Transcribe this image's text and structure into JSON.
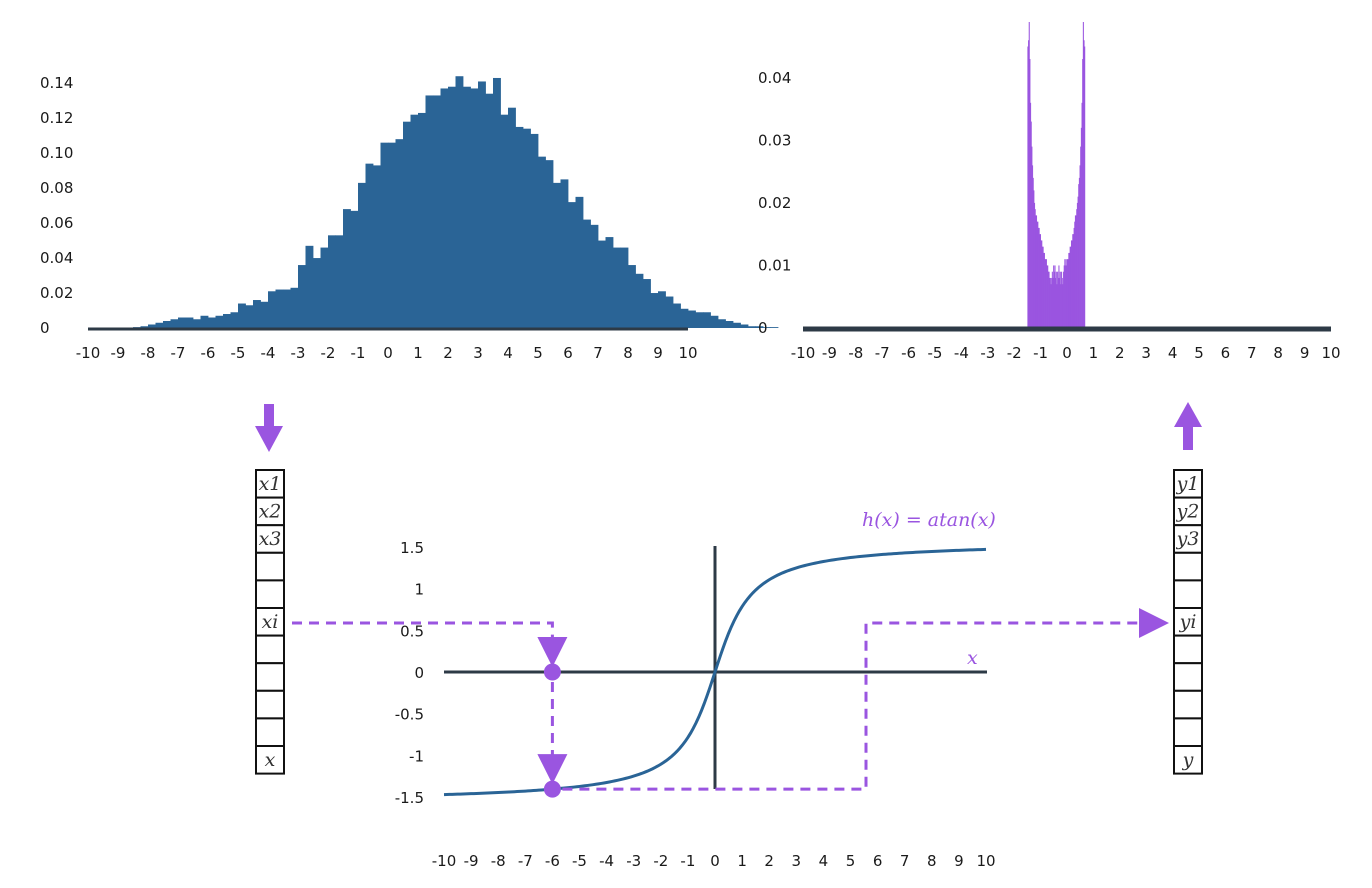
{
  "colors": {
    "input_hist": "#2a6496",
    "output_hist": "#9a55e0",
    "curve": "#2a6496",
    "accent": "#9a55e0",
    "axis": "#2d3a46"
  },
  "chart_data": [
    {
      "type": "bar",
      "xlim": [
        -10,
        10
      ],
      "ylim": [
        0,
        0.15
      ],
      "yticks": [
        "0",
        "0.02",
        "0.04",
        "0.06",
        "0.08",
        "0.10",
        "0.12",
        "0.14"
      ],
      "xticks": [
        "-10",
        "-9",
        "-8",
        "-7",
        "-6",
        "-5",
        "-4",
        "-3",
        "-2",
        "-1",
        "0",
        "1",
        "2",
        "3",
        "4",
        "5",
        "6",
        "7",
        "8",
        "9",
        "10"
      ],
      "bin_start": -10,
      "bin_width": 0.25,
      "values": [
        0.0,
        0.0,
        0.0,
        0.0,
        0.0,
        0.0,
        0.0005,
        0.001,
        0.002,
        0.003,
        0.004,
        0.005,
        0.006,
        0.006,
        0.005,
        0.007,
        0.006,
        0.007,
        0.008,
        0.009,
        0.014,
        0.013,
        0.016,
        0.015,
        0.021,
        0.022,
        0.022,
        0.023,
        0.036,
        0.047,
        0.04,
        0.046,
        0.053,
        0.053,
        0.068,
        0.067,
        0.083,
        0.094,
        0.093,
        0.106,
        0.106,
        0.108,
        0.118,
        0.122,
        0.123,
        0.133,
        0.133,
        0.137,
        0.138,
        0.144,
        0.138,
        0.137,
        0.141,
        0.134,
        0.143,
        0.122,
        0.126,
        0.115,
        0.114,
        0.111,
        0.098,
        0.096,
        0.083,
        0.085,
        0.072,
        0.075,
        0.062,
        0.059,
        0.05,
        0.052,
        0.046,
        0.046,
        0.036,
        0.031,
        0.028,
        0.02,
        0.021,
        0.018,
        0.014,
        0.011,
        0.01,
        0.009,
        0.009,
        0.007,
        0.005,
        0.004,
        0.003,
        0.002,
        0.001,
        0.001,
        0.0005,
        0.0005,
        0.0,
        0.0,
        0.0,
        0.0,
        0.0,
        0.0,
        0.0,
        0.0
      ]
    },
    {
      "type": "bar",
      "xlim": [
        -10,
        10
      ],
      "ylim": [
        0,
        0.047
      ],
      "yticks": [
        "0",
        "0.01",
        "0.02",
        "0.03",
        "0.04"
      ],
      "xticks": [
        "-10",
        "-9",
        "-8",
        "-7",
        "-6",
        "-5",
        "-4",
        "-3",
        "-2",
        "-1",
        "0",
        "1",
        "2",
        "3",
        "4",
        "5",
        "6",
        "7",
        "8",
        "9",
        "10"
      ],
      "bin_start": -1.5,
      "bin_width": 0.025,
      "values": [
        0.045,
        0.046,
        0.05,
        0.043,
        0.036,
        0.033,
        0.029,
        0.026,
        0.024,
        0.022,
        0.02,
        0.019,
        0.018,
        0.018,
        0.017,
        0.017,
        0.016,
        0.016,
        0.015,
        0.015,
        0.014,
        0.014,
        0.013,
        0.013,
        0.012,
        0.012,
        0.011,
        0.011,
        0.011,
        0.01,
        0.01,
        0.009,
        0.009,
        0.008,
        0.008,
        0.007,
        0.008,
        0.009,
        0.008,
        0.01,
        0.009,
        0.01,
        0.008,
        0.009,
        0.007,
        0.009,
        0.008,
        0.01,
        0.008,
        0.009,
        0.007,
        0.009,
        0.008,
        0.007,
        0.009,
        0.01,
        0.011,
        0.01,
        0.011,
        0.01,
        0.011,
        0.011,
        0.012,
        0.012,
        0.013,
        0.013,
        0.014,
        0.014,
        0.015,
        0.015,
        0.016,
        0.017,
        0.018,
        0.018,
        0.019,
        0.02,
        0.021,
        0.023,
        0.024,
        0.026,
        0.029,
        0.032,
        0.036,
        0.043,
        0.05,
        0.046,
        0.045
      ]
    },
    {
      "type": "line",
      "function": "atan",
      "xlim": [
        -10,
        10
      ],
      "ylim": [
        -1.5,
        1.5
      ],
      "yticks": [
        "1.5",
        "1",
        "0.5",
        "0",
        "-0.5",
        "-1",
        "-1.5"
      ],
      "xticks": [
        "-10",
        "-9",
        "-8",
        "-7",
        "-6",
        "-5",
        "-4",
        "-3",
        "-2",
        "-1",
        "0",
        "1",
        "2",
        "3",
        "4",
        "5",
        "6",
        "7",
        "8",
        "9",
        "10"
      ],
      "example_input_x": -6,
      "label": "h(x) = atan(x)",
      "axis_label": "x"
    }
  ],
  "input_vector": {
    "cells": [
      "x1",
      "x2",
      "x3",
      "",
      "",
      "xi",
      "",
      "",
      "",
      "",
      "x"
    ]
  },
  "output_vector": {
    "cells": [
      "y1",
      "y2",
      "y3",
      "",
      "",
      "yi",
      "",
      "",
      "",
      "",
      "y"
    ]
  }
}
